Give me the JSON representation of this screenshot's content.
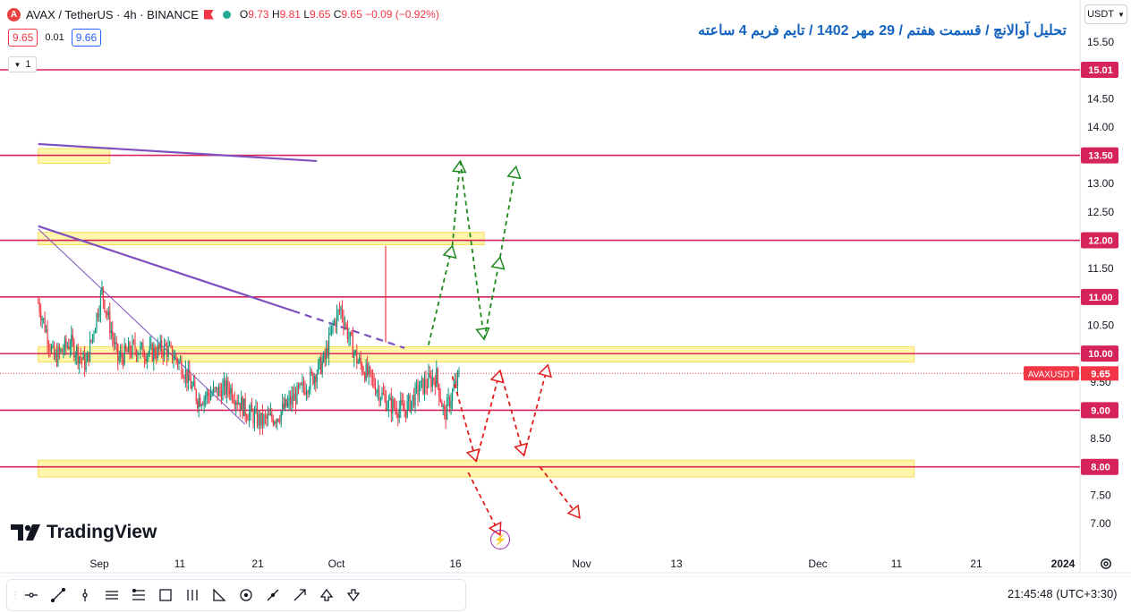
{
  "header": {
    "symbol_text": "AVAX / TetherUS · 4h · BINANCE",
    "ohlc_o": "9.73",
    "ohlc_h": "9.81",
    "ohlc_l": "9.65",
    "ohlc_c": "9.65",
    "change": "−0.09 (−0.92%)",
    "bid": "9.65",
    "spread": "0.01",
    "ask": "9.66",
    "indicator_count": "1"
  },
  "title": "تحلیل آوالانچ / قسمت هفتم / 29 مهر 1402 / تایم فریم 4 ساعته",
  "currency": "USDT",
  "brand": "TradingView",
  "status": {
    "time": "21:45:48",
    "timezone": "(UTC+3:30)"
  },
  "colors": {
    "level_line": "#d6245b",
    "zone_fill": "#fff59d",
    "trendline": "#7e4fbe",
    "bull_path": "#1e8a1e",
    "bear_path": "#e11d1d",
    "candle_up": "#089981",
    "candle_down": "#f23645",
    "last_price_tag": "#f23645"
  },
  "toolbar": {
    "tools": [
      "horizontal-line-icon",
      "trend-line-icon",
      "vertical-line-icon",
      "parallel-channel-icon",
      "fib-retracement-icon",
      "rectangle-icon",
      "pitchfork-icon",
      "triangle-icon",
      "ellipse-icon",
      "path-icon",
      "arrow-icon",
      "arrow-up-icon",
      "arrow-down-icon"
    ]
  },
  "chart_data": {
    "type": "candlestick",
    "symbol": "AVAXUSDT",
    "last_price": 9.65,
    "last_price_label": "AVAXUSDT",
    "y_ticks": [
      7.0,
      7.5,
      8.5,
      9.5,
      10.5,
      11.5,
      12.5,
      13.0,
      14.0,
      14.5,
      15.5
    ],
    "ylim": [
      6.55,
      15.95
    ],
    "x_ticks": [
      "Sep",
      "11",
      "21",
      "Oct",
      "16",
      "Nov",
      "13",
      "Dec",
      "11",
      "21",
      "2024"
    ],
    "horizontal_levels": [
      {
        "value": 15.01,
        "label": "15.01"
      },
      {
        "value": 13.5,
        "label": "13.50"
      },
      {
        "value": 12.0,
        "label": "12.00"
      },
      {
        "value": 11.0,
        "label": "11.00"
      },
      {
        "value": 10.0,
        "label": "10.00"
      },
      {
        "value": 9.0,
        "label": "9.00"
      },
      {
        "value": 8.0,
        "label": "8.00"
      }
    ],
    "zones": [
      {
        "from": 13.36,
        "to": 13.62,
        "start_day": -7,
        "end_day": 2
      },
      {
        "from": 11.92,
        "to": 12.14,
        "start_day": -7,
        "end_day": 49
      },
      {
        "from": 9.85,
        "to": 10.12,
        "start_day": -7,
        "end_day": 103
      },
      {
        "from": 7.82,
        "to": 8.12,
        "start_day": -7,
        "end_day": 103
      }
    ],
    "trendlines": [
      {
        "points": [
          [
            -7,
            13.7
          ],
          [
            28,
            13.4
          ]
        ]
      },
      {
        "points": [
          [
            -7,
            12.25
          ],
          [
            39,
            10.1
          ]
        ],
        "dashed_from": 25
      }
    ],
    "thin_trendline": {
      "points": [
        [
          -7,
          12.2
        ],
        [
          19,
          8.75
        ]
      ]
    },
    "close_series_days": [
      -7,
      -5,
      -3,
      -1,
      1,
      3,
      5,
      7,
      9,
      11,
      13,
      15,
      17,
      19,
      21,
      23,
      25,
      27,
      29,
      30,
      31,
      32,
      33,
      35,
      37,
      39,
      41,
      43,
      44,
      45,
      46
    ],
    "close_series_values": [
      10.9,
      9.9,
      10.2,
      9.8,
      11.1,
      9.9,
      10.1,
      10.0,
      10.1,
      9.8,
      9.2,
      9.3,
      9.4,
      9.0,
      8.8,
      8.9,
      9.2,
      9.5,
      9.9,
      10.5,
      10.8,
      10.3,
      9.9,
      9.5,
      9.1,
      9.0,
      9.4,
      9.6,
      8.9,
      9.3,
      9.65
    ],
    "scenario_bull": [
      [
        42,
        10.15
      ],
      [
        45,
        11.9
      ],
      [
        46,
        13.4
      ],
      [
        49,
        10.25
      ],
      [
        51,
        11.7
      ],
      [
        53,
        13.3
      ]
    ],
    "scenario_bull_dash_breaks": [
      1
    ],
    "scenario_bear": [
      [
        45,
        9.6
      ],
      [
        48,
        8.1
      ],
      [
        51,
        9.7
      ],
      [
        54,
        8.2
      ],
      [
        57,
        9.8
      ]
    ],
    "scenario_bear_extra": [
      [
        47,
        7.9
      ],
      [
        51,
        6.8
      ]
    ],
    "scenario_bear_extra2": [
      [
        56,
        8.0
      ],
      [
        61,
        7.1
      ]
    ]
  }
}
